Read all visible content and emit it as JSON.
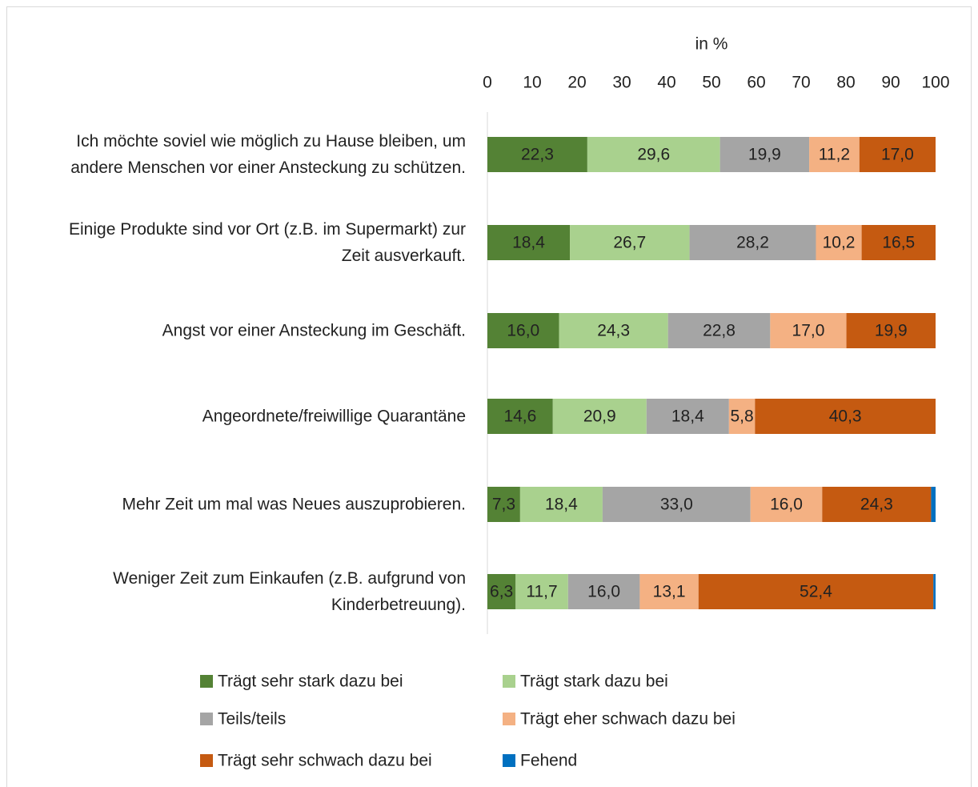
{
  "chart_data": {
    "type": "stacked-bar-horizontal",
    "x_label": "in %",
    "categories": [
      "Ich möchte soviel wie möglich zu Hause bleiben, um andere Menschen vor einer Ansteckung zu schützen.",
      "Einige Produkte sind vor Ort (z.B. im Supermarkt) zur Zeit ausverkauft.",
      "Angst vor einer Ansteckung im Geschäft.",
      "Angeordnete/freiwillige Quarantäne",
      "Mehr Zeit um mal was Neues auszuprobieren.",
      "Weniger Zeit zum Einkaufen (z.B. aufgrund von Kinderbetreuung)."
    ],
    "series": [
      {
        "name": "Trägt sehr stark dazu bei",
        "color": "#548235",
        "values": [
          22.3,
          18.4,
          16.0,
          14.6,
          7.3,
          6.3
        ],
        "value_labels": [
          "22,3",
          "18,4",
          "16,0",
          "14,6",
          "7,3",
          "6,3"
        ]
      },
      {
        "name": "Trägt stark dazu bei",
        "color": "#a9d18e",
        "values": [
          29.6,
          26.7,
          24.3,
          20.9,
          18.4,
          11.7
        ],
        "value_labels": [
          "29,6",
          "26,7",
          "24,3",
          "20,9",
          "18,4",
          "11,7"
        ]
      },
      {
        "name": "Teils/teils",
        "color": "#a5a5a5",
        "values": [
          19.9,
          28.2,
          22.8,
          18.4,
          33.0,
          16.0
        ],
        "value_labels": [
          "19,9",
          "28,2",
          "22,8",
          "18,4",
          "33,0",
          "16,0"
        ]
      },
      {
        "name": "Trägt eher schwach dazu bei",
        "color": "#f4b183",
        "values": [
          11.2,
          10.2,
          17.0,
          5.8,
          16.0,
          13.1
        ],
        "value_labels": [
          "11,2",
          "10,2",
          "17,0",
          "5,8",
          "16,0",
          "13,1"
        ]
      },
      {
        "name": "Trägt sehr schwach dazu bei",
        "color": "#c55a11",
        "values": [
          17.0,
          16.5,
          19.9,
          40.3,
          24.3,
          52.4
        ],
        "value_labels": [
          "17,0",
          "16,5",
          "19,9",
          "40,3",
          "24,3",
          "52,4"
        ]
      },
      {
        "name": "Fehend",
        "color": "#0070c0",
        "values": [
          0,
          0,
          0,
          0,
          1.0,
          0.5
        ]
      }
    ],
    "xlim": [
      0,
      100
    ],
    "xticks": [
      0,
      10,
      20,
      30,
      40,
      50,
      60,
      70,
      80,
      90,
      100
    ],
    "x_axis_position": "top"
  }
}
